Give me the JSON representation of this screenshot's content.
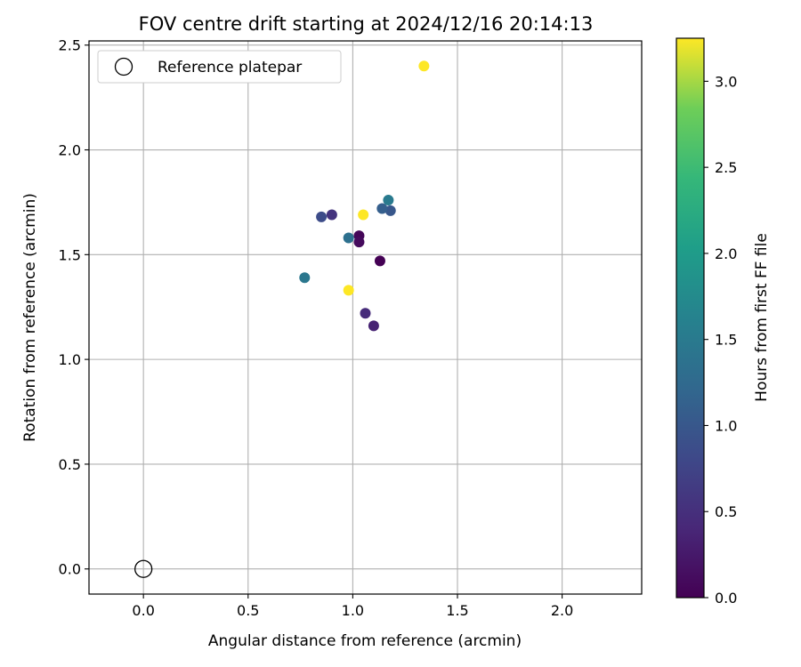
{
  "chart_data": {
    "type": "scatter",
    "title": "FOV centre drift starting at 2024/12/16 20:14:13",
    "xlabel": "Angular distance from reference (arcmin)",
    "ylabel": "Rotation from reference (arcmin)",
    "xlim": [
      -0.26,
      2.38
    ],
    "ylim": [
      -0.12,
      2.52
    ],
    "xticks": [
      0.0,
      0.5,
      1.0,
      1.5,
      2.0
    ],
    "xtick_labels": [
      "0.0",
      "0.5",
      "1.0",
      "1.5",
      "2.0"
    ],
    "yticks": [
      0.0,
      0.5,
      1.0,
      1.5,
      2.0,
      2.5
    ],
    "ytick_labels": [
      "0.0",
      "0.5",
      "1.0",
      "1.5",
      "2.0",
      "2.5"
    ],
    "grid": true,
    "legend": {
      "placement": "top-left",
      "entries": [
        "Reference platepar"
      ]
    },
    "reference_point": {
      "x": 0.0,
      "y": 0.0
    },
    "colorbar": {
      "label": "Hours from first FF file",
      "colormap": "viridis",
      "range": [
        0.0,
        3.25
      ],
      "ticks": [
        0.0,
        0.5,
        1.0,
        1.5,
        2.0,
        2.5,
        3.0
      ],
      "tick_labels": [
        "0.0",
        "0.5",
        "1.0",
        "1.5",
        "2.0",
        "2.5",
        "3.0"
      ]
    },
    "points": [
      {
        "x": 1.13,
        "y": 1.47,
        "hours": 0.0
      },
      {
        "x": 1.03,
        "y": 1.59,
        "hours": 0.05
      },
      {
        "x": 1.03,
        "y": 1.56,
        "hours": 0.1
      },
      {
        "x": 1.1,
        "y": 1.16,
        "hours": 0.35
      },
      {
        "x": 1.06,
        "y": 1.22,
        "hours": 0.45
      },
      {
        "x": 0.9,
        "y": 1.69,
        "hours": 0.55
      },
      {
        "x": 0.85,
        "y": 1.68,
        "hours": 0.85
      },
      {
        "x": 1.18,
        "y": 1.71,
        "hours": 1.0
      },
      {
        "x": 1.14,
        "y": 1.72,
        "hours": 1.1
      },
      {
        "x": 0.98,
        "y": 1.58,
        "hours": 1.35
      },
      {
        "x": 0.77,
        "y": 1.39,
        "hours": 1.45
      },
      {
        "x": 1.17,
        "y": 1.76,
        "hours": 1.5
      },
      {
        "x": 1.05,
        "y": 1.69,
        "hours": 3.25
      },
      {
        "x": 0.98,
        "y": 1.33,
        "hours": 3.25
      },
      {
        "x": 1.34,
        "y": 2.4,
        "hours": 3.25
      }
    ]
  }
}
